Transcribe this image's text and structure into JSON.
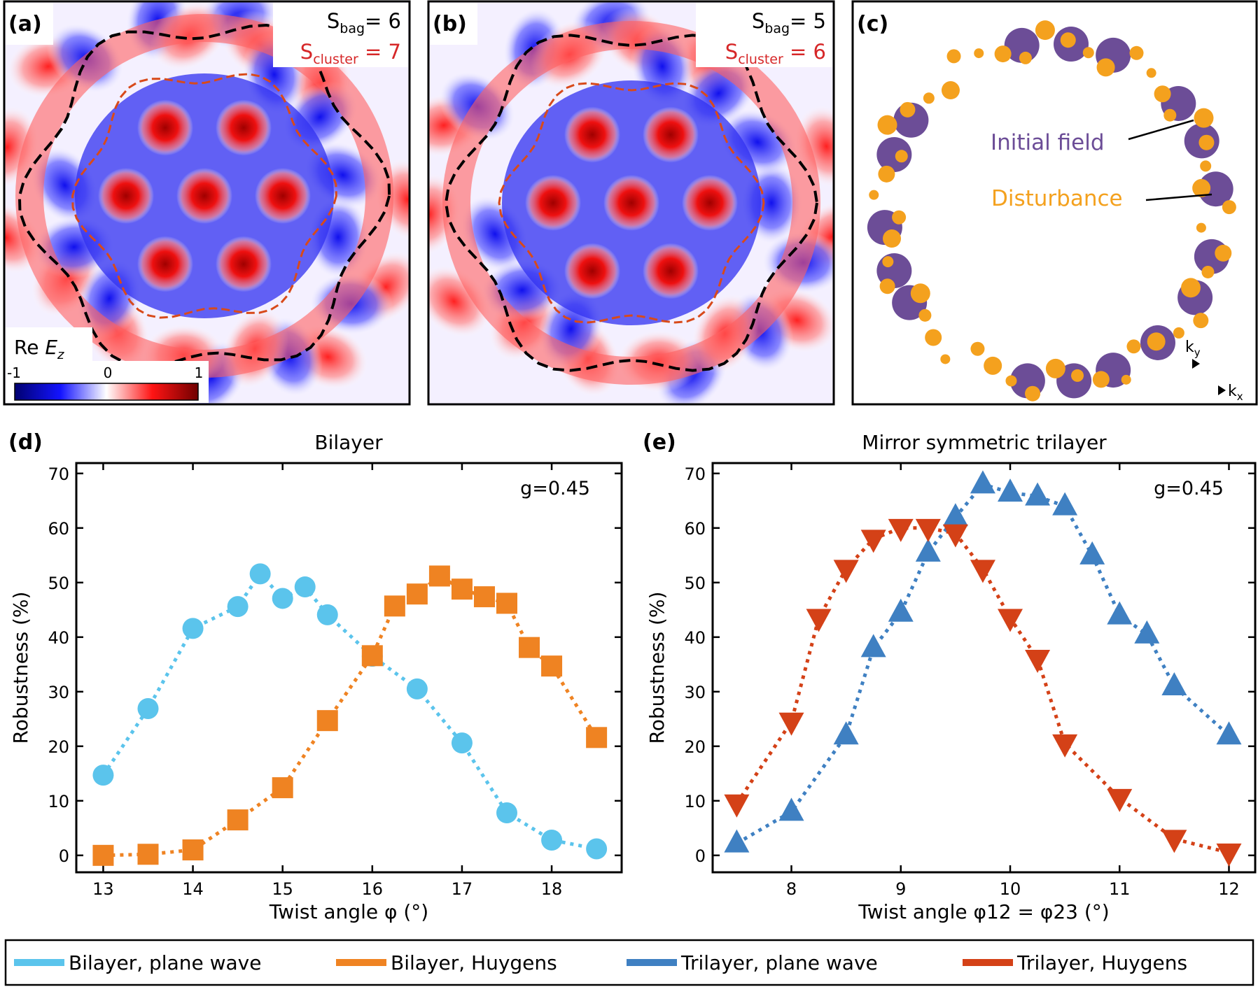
{
  "panel_a": {
    "label": "(a)",
    "s_bag": "S",
    "s_bag_sub": "bag",
    "s_bag_val": "= 6",
    "s_cluster": "S",
    "s_cluster_sub": "cluster",
    "s_cluster_val": " = 7",
    "colorbar": {
      "title": "Re ",
      "title_var": "E",
      "title_sub": "z",
      "min": "-1",
      "mid": "0",
      "max": "1"
    }
  },
  "panel_b": {
    "label": "(b)",
    "s_bag": "S",
    "s_bag_sub": "bag",
    "s_bag_val": "= 5",
    "s_cluster": "S",
    "s_cluster_sub": "cluster",
    "s_cluster_val": " = 6"
  },
  "panel_c": {
    "label": "(c)",
    "initial_field": "Initial field",
    "disturbance": "Disturbance",
    "ky": "k",
    "ky_sub": "y",
    "kx": "k",
    "kx_sub": "x"
  },
  "colors": {
    "initial_field": "#6c4d97",
    "disturbance": "#f4a11e",
    "bilayer_plane": "#5bc4ec",
    "bilayer_huygens": "#ef8322",
    "trilayer_plane": "#3f80c2",
    "trilayer_huygens": "#d44117",
    "cluster_contour": "#d84a1a",
    "bag_contour": "#000000"
  },
  "chart_data": [
    {
      "type": "line",
      "panel": "(d)",
      "title": "Bilayer",
      "annotation": "g=0.45",
      "xlabel": "Twist angle φ (°)",
      "ylabel": "Robustness (%)",
      "xticks": [
        13,
        14,
        15,
        16,
        17,
        18
      ],
      "yticks": [
        0,
        10,
        20,
        30,
        40,
        50,
        60,
        70
      ],
      "xlim": [
        12.7,
        18.78
      ],
      "ylim": [
        -3.1,
        71.9
      ],
      "grid": false,
      "series": [
        {
          "name": "Bilayer, plane wave",
          "marker": "circle",
          "color": "#5bc4ec",
          "x": [
            13,
            13.5,
            14,
            14.5,
            14.75,
            15,
            15.25,
            15.5,
            16,
            16.5,
            17,
            17.5,
            18,
            18.5
          ],
          "y": [
            14.7,
            26.9,
            41.6,
            45.6,
            51.6,
            47.1,
            49.2,
            44.1,
            36.5,
            30.5,
            20.6,
            7.8,
            2.8,
            1.2
          ]
        },
        {
          "name": "Bilayer, Huygens",
          "marker": "square",
          "color": "#ef8322",
          "x": [
            13,
            13.5,
            14,
            14.5,
            15,
            15.5,
            16,
            16.25,
            16.5,
            16.75,
            17,
            17.25,
            17.5,
            17.75,
            18,
            18.5
          ],
          "y": [
            0,
            0.2,
            1,
            6.5,
            12.4,
            24.7,
            36.6,
            45.7,
            47.9,
            51.2,
            48.8,
            47.4,
            46.2,
            38.1,
            34.7,
            21.6
          ]
        }
      ]
    },
    {
      "type": "line",
      "panel": "(e)",
      "title": "Mirror symmetric trilayer",
      "annotation": "g=0.45",
      "xlabel": "Twist angle φ12 = φ23 (°)",
      "ylabel": "Robustness (%)",
      "xticks": [
        8,
        9,
        10,
        11,
        12
      ],
      "yticks": [
        0,
        10,
        20,
        30,
        40,
        50,
        60,
        70
      ],
      "xlim": [
        7.28,
        12.24
      ],
      "ylim": [
        -3.1,
        71.9
      ],
      "grid": false,
      "series": [
        {
          "name": "Trilayer, plane wave",
          "marker": "triangle-up",
          "color": "#3f80c2",
          "x": [
            7.5,
            8,
            8.5,
            8.75,
            9,
            9.25,
            9.5,
            9.75,
            10,
            10.25,
            10.5,
            10.75,
            11,
            11.25,
            11.5,
            12
          ],
          "y": [
            2.2,
            8,
            22,
            38,
            44.5,
            55.5,
            62,
            68,
            66.5,
            65.8,
            64,
            55,
            44,
            40.5,
            31,
            22
          ]
        },
        {
          "name": "Trilayer, Huygens",
          "marker": "triangle-down",
          "color": "#d44117",
          "x": [
            7.5,
            8,
            8.25,
            8.5,
            8.75,
            9,
            9.25,
            9.5,
            9.75,
            10,
            10.25,
            10.5,
            11,
            11.5,
            12
          ],
          "y": [
            9.5,
            24.5,
            43.5,
            52.5,
            58,
            60,
            60,
            59,
            52.5,
            43.5,
            36,
            20.5,
            10.5,
            3,
            0.5
          ]
        }
      ]
    }
  ],
  "legend": [
    "Bilayer, plane wave",
    "Bilayer, Huygens",
    "Trilayer, plane wave",
    "Trilayer, Huygens"
  ]
}
